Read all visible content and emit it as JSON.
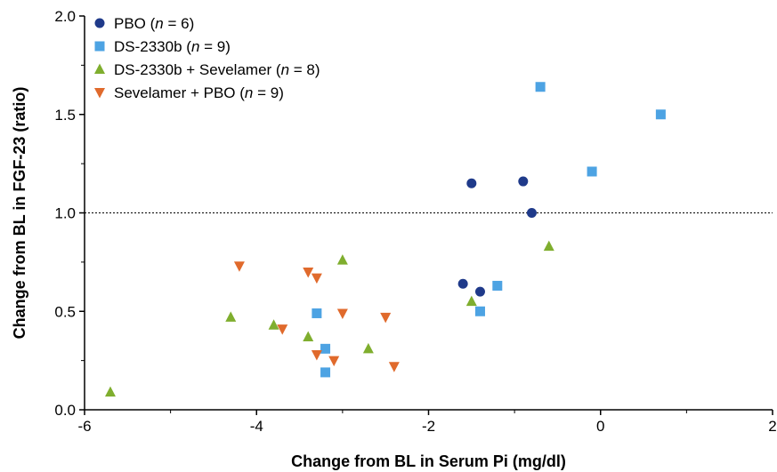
{
  "chart_data": {
    "type": "scatter",
    "xlabel": "Change from BL in Serum Pi (mg/dl)",
    "ylabel": "Change from BL in FGF-23 (ratio)",
    "xlim": [
      -6,
      2
    ],
    "ylim": [
      0,
      2
    ],
    "x_ticks": [
      "-6",
      "-4",
      "-2",
      "0",
      "2"
    ],
    "y_ticks": [
      "0.0",
      "0.5",
      "1.0",
      "1.5",
      "2.0"
    ],
    "reference_line_y": 1.0,
    "legend_position": "top-left",
    "series": [
      {
        "name": "PBO",
        "n_label": "n",
        "n_value": " = 6)",
        "marker": "circle",
        "color": "#1f3a8a",
        "points": [
          [
            -1.5,
            1.15
          ],
          [
            -0.9,
            1.16
          ],
          [
            -0.8,
            1.0
          ],
          [
            -1.6,
            0.64
          ],
          [
            -1.4,
            0.6
          ]
        ]
      },
      {
        "name": "DS-2330b",
        "n_label": "n",
        "n_value": " = 9)",
        "marker": "square",
        "color": "#4da3e3",
        "points": [
          [
            -0.7,
            1.64
          ],
          [
            0.7,
            1.5
          ],
          [
            -0.1,
            1.21
          ],
          [
            -1.2,
            0.63
          ],
          [
            -1.4,
            0.5
          ],
          [
            -3.3,
            0.49
          ],
          [
            -3.2,
            0.31
          ],
          [
            -3.2,
            0.19
          ]
        ]
      },
      {
        "name": "DS-2330b + Sevelamer",
        "n_label": "n",
        "n_value": " = 8)",
        "marker": "triangle-up",
        "color": "#7fae2e",
        "points": [
          [
            -0.6,
            0.83
          ],
          [
            -1.5,
            0.55
          ],
          [
            -3.0,
            0.76
          ],
          [
            -4.3,
            0.47
          ],
          [
            -3.8,
            0.43
          ],
          [
            -3.4,
            0.37
          ],
          [
            -2.7,
            0.31
          ],
          [
            -5.7,
            0.09
          ]
        ]
      },
      {
        "name": "Sevelamer + PBO",
        "n_label": "n",
        "n_value": " = 9)",
        "marker": "triangle-down",
        "color": "#e06a2c",
        "points": [
          [
            -4.2,
            0.73
          ],
          [
            -3.4,
            0.7
          ],
          [
            -3.3,
            0.67
          ],
          [
            -3.0,
            0.49
          ],
          [
            -2.5,
            0.47
          ],
          [
            -3.7,
            0.41
          ],
          [
            -3.3,
            0.28
          ],
          [
            -3.1,
            0.25
          ],
          [
            -2.4,
            0.22
          ]
        ]
      }
    ]
  }
}
